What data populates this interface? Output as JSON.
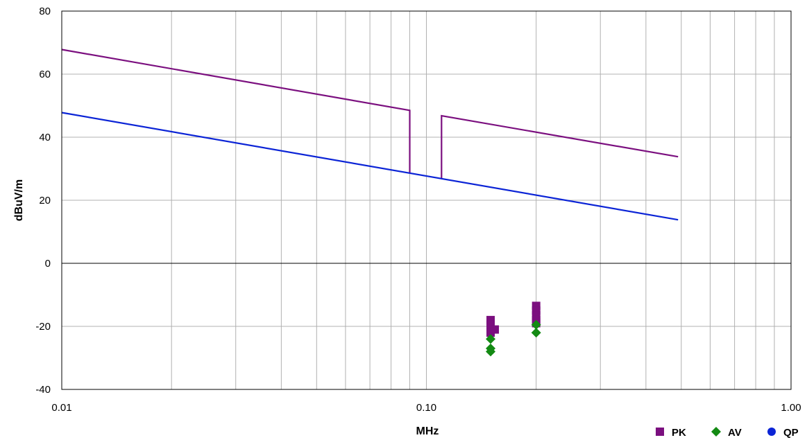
{
  "chart_data": {
    "type": "scatter",
    "title": "",
    "xlabel": "MHz",
    "ylabel": "dBuV/m",
    "xscale": "log",
    "xlim": [
      0.01,
      1.0
    ],
    "ylim": [
      -40,
      80
    ],
    "grid": true,
    "legend_position": "bottom-right",
    "x_ticks": [
      {
        "value": 0.01,
        "label": "0.01"
      },
      {
        "value": 0.1,
        "label": "0.10"
      },
      {
        "value": 1.0,
        "label": "1.00"
      }
    ],
    "y_ticks": [
      {
        "value": -40,
        "label": "-40"
      },
      {
        "value": -20,
        "label": "-20"
      },
      {
        "value": 0,
        "label": "0"
      },
      {
        "value": 20,
        "label": "20"
      },
      {
        "value": 40,
        "label": "40"
      },
      {
        "value": 60,
        "label": "60"
      },
      {
        "value": 80,
        "label": "80"
      }
    ],
    "limit_lines": [
      {
        "color": "#7b0f7f",
        "segments": [
          [
            [
              0.01,
              67.8
            ],
            [
              0.09,
              48.5
            ],
            [
              0.09,
              28.5
            ]
          ],
          [
            [
              0.11,
              26.8
            ],
            [
              0.11,
              46.8
            ],
            [
              0.49,
              33.8
            ]
          ]
        ]
      },
      {
        "color": "#0b24d6",
        "segments": [
          [
            [
              0.01,
              47.8
            ],
            [
              0.49,
              13.8
            ]
          ]
        ]
      }
    ],
    "series": [
      {
        "name": "PK",
        "marker": "square",
        "color": "#7b0f7f",
        "points": [
          [
            0.15,
            -18.0
          ],
          [
            0.15,
            -19.5
          ],
          [
            0.15,
            -22.0
          ],
          [
            0.154,
            -21.0
          ],
          [
            0.2,
            -13.5
          ],
          [
            0.2,
            -15.0
          ],
          [
            0.2,
            -16.5
          ],
          [
            0.2,
            -18.0
          ],
          [
            0.2,
            -19.0
          ]
        ]
      },
      {
        "name": "AV",
        "marker": "diamond",
        "color": "#138a13",
        "points": [
          [
            0.15,
            -24.0
          ],
          [
            0.15,
            -27.0
          ],
          [
            0.15,
            -28.0
          ],
          [
            0.2,
            -19.5
          ],
          [
            0.2,
            -22.0
          ]
        ]
      },
      {
        "name": "QP",
        "marker": "circle",
        "color": "#0b24d6",
        "points": []
      }
    ]
  }
}
